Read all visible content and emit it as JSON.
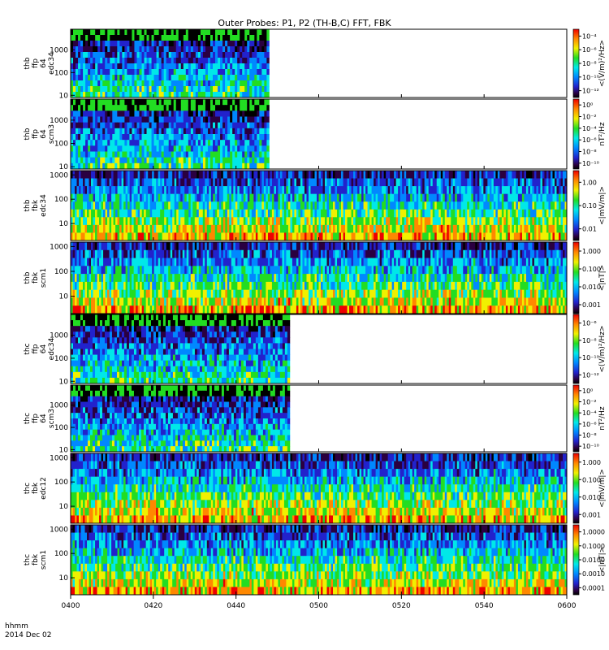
{
  "title": "Outer Probes: P1, P2 (TH-B,C) FFT, FBK",
  "footer": {
    "format": "hhmm",
    "date": "2014 Dec 02"
  },
  "time_ticks": [
    "0400",
    "0420",
    "0440",
    "0500",
    "0520",
    "0540",
    "0600"
  ],
  "colors": {
    "background": "#ffffff",
    "axis": "#000000"
  },
  "chart_data": [
    {
      "type": "heatmap",
      "panel_label": [
        "thb",
        "ffp",
        "64",
        "edc34"
      ],
      "freq_ticks": [
        "10",
        "100",
        "1000"
      ],
      "colorbar_unit": "<(V/m)²/Hz>",
      "colorbar_ticks": [
        "10⁻¹²",
        "10⁻¹⁰",
        "10⁻⁸",
        "10⁻⁶",
        "10⁻⁴"
      ],
      "data_end_time": "0448",
      "ylim_hz": [
        8,
        8000
      ]
    },
    {
      "type": "heatmap",
      "panel_label": [
        "thb",
        "ffp",
        "64",
        "scm3"
      ],
      "freq_ticks": [
        "10",
        "100",
        "1000"
      ],
      "colorbar_unit": "nT²/Hz",
      "colorbar_ticks": [
        "10⁻¹⁰",
        "10⁻⁸",
        "10⁻⁶",
        "10⁻⁴",
        "10⁻²",
        "10⁰"
      ],
      "data_end_time": "0448",
      "ylim_hz": [
        8,
        8000
      ]
    },
    {
      "type": "heatmap",
      "panel_label": [
        "thb",
        "fbk",
        "edc34"
      ],
      "freq_ticks": [
        "10",
        "100",
        "1000"
      ],
      "colorbar_unit": "<|mV/m|>",
      "colorbar_ticks": [
        "0.01",
        "0.10",
        "1.00"
      ],
      "data_end_time": "0600",
      "ylim_hz": [
        2,
        1500
      ]
    },
    {
      "type": "heatmap",
      "panel_label": [
        "thb",
        "fbk",
        "scm1"
      ],
      "freq_ticks": [
        "10",
        "100",
        "1000"
      ],
      "colorbar_unit": "<|nT|>",
      "colorbar_ticks": [
        "0.001",
        "0.010",
        "0.100",
        "1.000"
      ],
      "data_end_time": "0600",
      "ylim_hz": [
        2,
        1500
      ]
    },
    {
      "type": "heatmap",
      "panel_label": [
        "thc",
        "ffp",
        "64",
        "edc34"
      ],
      "freq_ticks": [
        "10",
        "100",
        "1000"
      ],
      "colorbar_unit": "<(V/m)²/Hz>",
      "colorbar_ticks": [
        "10⁻¹²",
        "10⁻¹⁰",
        "10⁻⁸",
        "10⁻⁶"
      ],
      "data_end_time": "0453",
      "ylim_hz": [
        8,
        8000
      ]
    },
    {
      "type": "heatmap",
      "panel_label": [
        "thc",
        "ffp",
        "64",
        "scm3"
      ],
      "freq_ticks": [
        "10",
        "100",
        "1000"
      ],
      "colorbar_unit": "nT²/Hz",
      "colorbar_ticks": [
        "10⁻¹⁰",
        "10⁻⁸",
        "10⁻⁶",
        "10⁻⁴",
        "10⁻²",
        "10⁰"
      ],
      "data_end_time": "0453",
      "ylim_hz": [
        8,
        8000
      ]
    },
    {
      "type": "heatmap",
      "panel_label": [
        "thc",
        "fbk",
        "edc12"
      ],
      "freq_ticks": [
        "10",
        "100",
        "1000"
      ],
      "colorbar_unit": "<|mV/m|>",
      "colorbar_ticks": [
        "0.001",
        "0.010",
        "0.100",
        "1.000"
      ],
      "data_end_time": "0600",
      "ylim_hz": [
        2,
        1500
      ]
    },
    {
      "type": "heatmap",
      "panel_label": [
        "thc",
        "fbk",
        "scm1"
      ],
      "freq_ticks": [
        "10",
        "100",
        "1000"
      ],
      "colorbar_unit": "<|nT|>",
      "colorbar_ticks": [
        "0.0001",
        "0.0010",
        "0.0100",
        "0.1000",
        "1.0000"
      ],
      "data_end_time": "0600",
      "ylim_hz": [
        2,
        1500
      ]
    }
  ]
}
